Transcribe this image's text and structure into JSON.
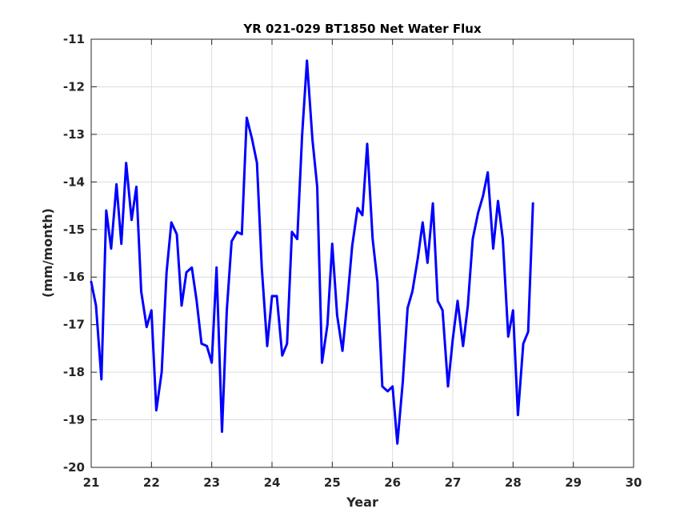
{
  "chart_data": {
    "type": "line",
    "title": "YR 021-029 BT1850 Net Water Flux",
    "xlabel": "Year",
    "ylabel": "(mm/month)",
    "xlim": [
      21,
      30
    ],
    "ylim": [
      -20,
      -11
    ],
    "xticks": [
      21,
      22,
      23,
      24,
      25,
      26,
      27,
      28,
      29,
      30
    ],
    "yticks": [
      -11,
      -12,
      -13,
      -14,
      -15,
      -16,
      -17,
      -18,
      -19,
      -20
    ],
    "grid": true,
    "legend": "none",
    "colors": {
      "series": "#0000ff",
      "axis": "#262626",
      "grid": "#dcdcdc"
    },
    "series": [
      {
        "x": [
          21.0,
          21.08,
          21.17,
          21.25,
          21.33,
          21.42,
          21.5,
          21.58,
          21.67,
          21.75,
          21.83,
          21.92,
          22.0,
          22.08,
          22.17,
          22.25,
          22.33,
          22.42,
          22.5,
          22.58,
          22.67,
          22.75,
          22.83,
          22.92,
          23.0,
          23.08,
          23.17,
          23.25,
          23.33,
          23.42,
          23.5,
          23.58,
          23.67,
          23.75,
          23.83,
          23.92,
          24.0,
          24.08,
          24.17,
          24.25,
          24.33,
          24.42,
          24.5,
          24.58,
          24.67,
          24.75,
          24.83,
          24.92,
          25.0,
          25.08,
          25.17,
          25.25,
          25.33,
          25.42,
          25.5,
          25.58,
          25.67,
          25.75,
          25.83,
          25.92,
          26.0,
          26.08,
          26.17,
          26.25,
          26.33,
          26.42,
          26.5,
          26.58,
          26.67,
          26.75,
          26.83,
          26.92,
          27.0,
          27.08,
          27.17,
          27.25,
          27.33,
          27.42,
          27.5,
          27.58,
          27.67,
          27.75,
          27.83,
          27.92,
          28.0,
          28.08,
          28.17,
          28.25,
          28.33
        ],
        "values": [
          -16.1,
          -16.6,
          -18.15,
          -14.6,
          -15.4,
          -14.05,
          -15.3,
          -13.6,
          -14.8,
          -14.1,
          -16.3,
          -17.05,
          -16.7,
          -18.8,
          -18.0,
          -15.9,
          -14.85,
          -15.1,
          -16.6,
          -15.9,
          -15.8,
          -16.5,
          -17.4,
          -17.45,
          -17.8,
          -15.8,
          -19.25,
          -16.7,
          -15.25,
          -15.05,
          -15.1,
          -12.65,
          -13.1,
          -13.6,
          -15.8,
          -17.45,
          -16.4,
          -16.4,
          -17.65,
          -17.4,
          -15.05,
          -15.2,
          -13.0,
          -11.45,
          -13.1,
          -14.1,
          -17.8,
          -17.0,
          -15.3,
          -16.8,
          -17.55,
          -16.5,
          -15.35,
          -14.55,
          -14.7,
          -13.2,
          -15.2,
          -16.1,
          -18.3,
          -18.4,
          -18.3,
          -19.5,
          -18.2,
          -16.65,
          -16.3,
          -15.6,
          -14.85,
          -15.7,
          -14.45,
          -16.5,
          -16.7,
          -18.3,
          -17.3,
          -16.5,
          -17.45,
          -16.6,
          -15.2,
          -14.65,
          -14.3,
          -13.8,
          -15.4,
          -14.4,
          -15.2,
          -17.25,
          -16.7,
          -18.9,
          -17.4,
          -17.15,
          -14.45
        ]
      }
    ]
  }
}
